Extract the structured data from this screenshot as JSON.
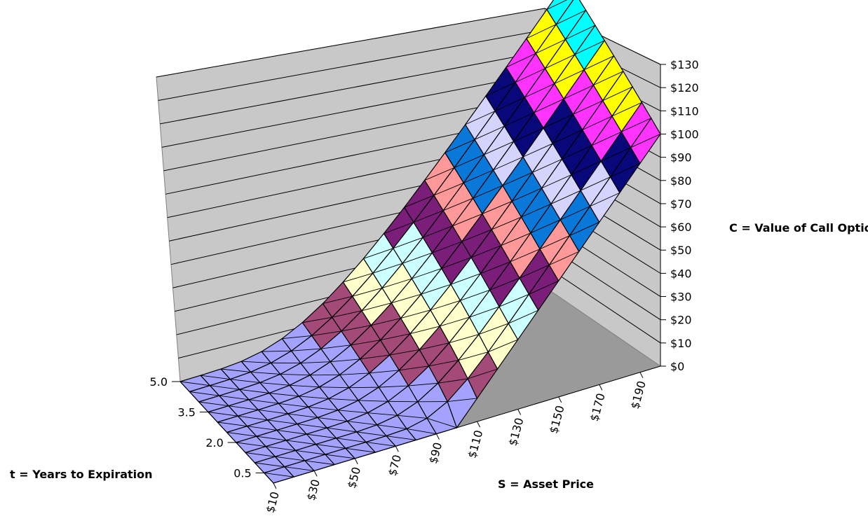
{
  "chart_data": {
    "type": "surface",
    "z_axis": {
      "label": "C = Value of Call Option",
      "range": [
        0,
        130
      ],
      "ticks": [
        "$0",
        "$10",
        "$20",
        "$30",
        "$40",
        "$50",
        "$60",
        "$70",
        "$80",
        "$90",
        "$100",
        "$110",
        "$120",
        "$130"
      ]
    },
    "x_axis": {
      "label": "S = Asset Price",
      "range": [
        10,
        200
      ],
      "ticks": [
        "$10",
        "$30",
        "$50",
        "$70",
        "$90",
        "$110",
        "$130",
        "$150",
        "$170",
        "$190"
      ]
    },
    "y_axis": {
      "label": "t = Years to Expiration",
      "range": [
        0,
        5
      ],
      "ticks": [
        "0.5",
        "2.0",
        "3.5",
        "5.0"
      ]
    },
    "grid": true,
    "strike": 100,
    "asset_prices": [
      10,
      20,
      30,
      40,
      50,
      60,
      70,
      80,
      90,
      100,
      110,
      120,
      130,
      140,
      150,
      160,
      170,
      180,
      190,
      200
    ],
    "years_to_expiration": [
      0,
      0.5,
      1.0,
      1.5,
      2.0,
      2.5,
      3.0,
      3.5,
      4.0,
      4.5,
      5.0
    ],
    "value_bands": [
      {
        "range": [
          0,
          10
        ],
        "color": "#a3a3ff"
      },
      {
        "range": [
          10,
          20
        ],
        "color": "#a44a78"
      },
      {
        "range": [
          20,
          30
        ],
        "color": "#ffffcc"
      },
      {
        "range": [
          30,
          40
        ],
        "color": "#ccffff"
      },
      {
        "range": [
          40,
          50
        ],
        "color": "#7a1e7a"
      },
      {
        "range": [
          50,
          60
        ],
        "color": "#ff9999"
      },
      {
        "range": [
          60,
          70
        ],
        "color": "#0a78d8"
      },
      {
        "range": [
          70,
          80
        ],
        "color": "#d4d4ff"
      },
      {
        "range": [
          80,
          90
        ],
        "color": "#08087a"
      },
      {
        "range": [
          90,
          100
        ],
        "color": "#ff33ff"
      },
      {
        "range": [
          100,
          110
        ],
        "color": "#ffff00"
      },
      {
        "range": [
          110,
          120
        ],
        "color": "#00ffff"
      },
      {
        "range": [
          120,
          130
        ],
        "color": "#990099"
      }
    ]
  }
}
